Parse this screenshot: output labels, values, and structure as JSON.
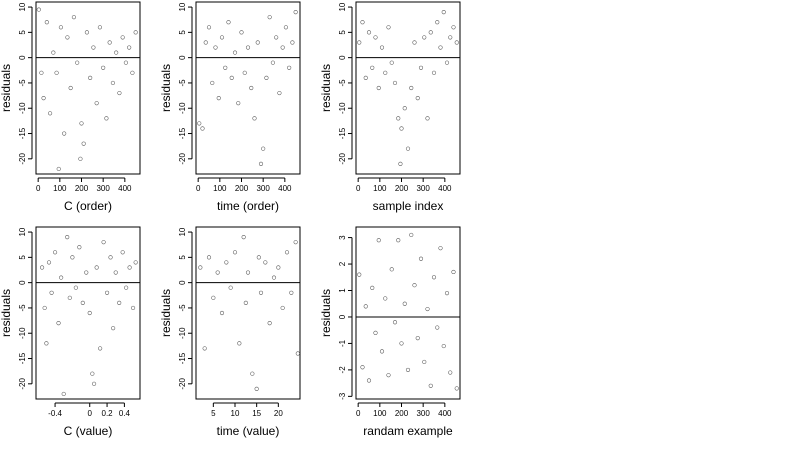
{
  "colors": {
    "point": "#555555",
    "line": "#000000",
    "background": "#ffffff"
  },
  "chart_data": [
    {
      "type": "scatter",
      "title": "",
      "xlabel": "C (order)",
      "ylabel": "residuals",
      "xlim": [
        -10,
        470
      ],
      "ylim": [
        -23,
        11
      ],
      "xticks": [
        0,
        100,
        200,
        300,
        400
      ],
      "yticks": [
        -20,
        -15,
        -10,
        -5,
        0,
        5,
        10
      ],
      "zero_line": 0,
      "grid": false,
      "legend": "none",
      "points": [
        [
          3,
          9.5
        ],
        [
          15,
          -3
        ],
        [
          25,
          -8
        ],
        [
          40,
          7
        ],
        [
          55,
          -11
        ],
        [
          70,
          1
        ],
        [
          85,
          -3
        ],
        [
          95,
          -22
        ],
        [
          105,
          6
        ],
        [
          120,
          -15
        ],
        [
          135,
          4
        ],
        [
          150,
          -6
        ],
        [
          165,
          8
        ],
        [
          180,
          -1
        ],
        [
          195,
          -20
        ],
        [
          200,
          -13
        ],
        [
          210,
          -17
        ],
        [
          225,
          5
        ],
        [
          240,
          -4
        ],
        [
          255,
          2
        ],
        [
          270,
          -9
        ],
        [
          285,
          6
        ],
        [
          300,
          -2
        ],
        [
          315,
          -12
        ],
        [
          330,
          3
        ],
        [
          345,
          -5
        ],
        [
          360,
          1
        ],
        [
          375,
          -7
        ],
        [
          390,
          4
        ],
        [
          405,
          -1
        ],
        [
          420,
          2
        ],
        [
          435,
          -3
        ],
        [
          450,
          5
        ]
      ]
    },
    {
      "type": "scatter",
      "title": "",
      "xlabel": "time (order)",
      "ylabel": "residuals",
      "xlim": [
        -10,
        470
      ],
      "ylim": [
        -23,
        11
      ],
      "xticks": [
        0,
        100,
        200,
        300,
        400
      ],
      "yticks": [
        -20,
        -15,
        -10,
        -5,
        0,
        5,
        10
      ],
      "zero_line": 0,
      "grid": false,
      "legend": "none",
      "points": [
        [
          5,
          -13
        ],
        [
          20,
          -14
        ],
        [
          35,
          3
        ],
        [
          50,
          6
        ],
        [
          65,
          -5
        ],
        [
          80,
          2
        ],
        [
          95,
          -8
        ],
        [
          110,
          4
        ],
        [
          125,
          -2
        ],
        [
          140,
          7
        ],
        [
          155,
          -4
        ],
        [
          170,
          1
        ],
        [
          185,
          -9
        ],
        [
          200,
          5
        ],
        [
          215,
          -3
        ],
        [
          230,
          2
        ],
        [
          245,
          -6
        ],
        [
          260,
          -12
        ],
        [
          275,
          3
        ],
        [
          290,
          -21
        ],
        [
          300,
          -18
        ],
        [
          315,
          -4
        ],
        [
          330,
          8
        ],
        [
          345,
          -1
        ],
        [
          360,
          4
        ],
        [
          375,
          -7
        ],
        [
          390,
          2
        ],
        [
          405,
          6
        ],
        [
          420,
          -2
        ],
        [
          435,
          3
        ],
        [
          450,
          9
        ]
      ]
    },
    {
      "type": "scatter",
      "title": "",
      "xlabel": "sample index",
      "ylabel": "residuals",
      "xlim": [
        -10,
        470
      ],
      "ylim": [
        -23,
        11
      ],
      "xticks": [
        0,
        100,
        200,
        300,
        400
      ],
      "yticks": [
        -20,
        -15,
        -10,
        -5,
        0,
        5,
        10
      ],
      "zero_line": 0,
      "grid": false,
      "legend": "none",
      "points": [
        [
          5,
          3
        ],
        [
          20,
          7
        ],
        [
          35,
          -4
        ],
        [
          50,
          5
        ],
        [
          65,
          -2
        ],
        [
          80,
          4
        ],
        [
          95,
          -6
        ],
        [
          110,
          2
        ],
        [
          125,
          -3
        ],
        [
          140,
          6
        ],
        [
          155,
          -1
        ],
        [
          170,
          -5
        ],
        [
          185,
          -12
        ],
        [
          195,
          -21
        ],
        [
          200,
          -14
        ],
        [
          215,
          -10
        ],
        [
          230,
          -18
        ],
        [
          245,
          -6
        ],
        [
          260,
          3
        ],
        [
          275,
          -8
        ],
        [
          290,
          -2
        ],
        [
          305,
          4
        ],
        [
          320,
          -12
        ],
        [
          335,
          5
        ],
        [
          350,
          -3
        ],
        [
          365,
          7
        ],
        [
          380,
          2
        ],
        [
          395,
          9
        ],
        [
          410,
          -1
        ],
        [
          425,
          4
        ],
        [
          440,
          6
        ],
        [
          455,
          3
        ]
      ]
    },
    {
      "type": "scatter",
      "title": "",
      "xlabel": "C (value)",
      "ylabel": "residuals",
      "xlim": [
        -0.62,
        0.58
      ],
      "ylim": [
        -23,
        11
      ],
      "xticks": [
        -0.4,
        0.0,
        0.2,
        0.4
      ],
      "yticks": [
        -20,
        -15,
        -10,
        -5,
        0,
        5,
        10
      ],
      "zero_line": 0,
      "grid": false,
      "legend": "none",
      "points": [
        [
          -0.55,
          3
        ],
        [
          -0.52,
          -5
        ],
        [
          -0.5,
          -12
        ],
        [
          -0.47,
          4
        ],
        [
          -0.44,
          -2
        ],
        [
          -0.4,
          6
        ],
        [
          -0.36,
          -8
        ],
        [
          -0.33,
          1
        ],
        [
          -0.3,
          -22
        ],
        [
          -0.26,
          9
        ],
        [
          -0.23,
          -3
        ],
        [
          -0.2,
          5
        ],
        [
          -0.16,
          -1
        ],
        [
          -0.12,
          7
        ],
        [
          -0.08,
          -4
        ],
        [
          -0.04,
          2
        ],
        [
          0.0,
          -6
        ],
        [
          0.03,
          -18
        ],
        [
          0.05,
          -20
        ],
        [
          0.08,
          3
        ],
        [
          0.12,
          -13
        ],
        [
          0.16,
          8
        ],
        [
          0.2,
          -2
        ],
        [
          0.24,
          5
        ],
        [
          0.27,
          -9
        ],
        [
          0.3,
          2
        ],
        [
          0.34,
          -4
        ],
        [
          0.38,
          6
        ],
        [
          0.42,
          -1
        ],
        [
          0.46,
          3
        ],
        [
          0.5,
          -5
        ],
        [
          0.53,
          4
        ]
      ]
    },
    {
      "type": "scatter",
      "title": "",
      "xlabel": "time (value)",
      "ylabel": "residuals",
      "xlim": [
        1,
        25
      ],
      "ylim": [
        -23,
        11
      ],
      "xticks": [
        5,
        10,
        15,
        20
      ],
      "yticks": [
        -20,
        -15,
        -10,
        -5,
        0,
        5,
        10
      ],
      "zero_line": 0,
      "grid": false,
      "legend": "none",
      "points": [
        [
          2,
          3
        ],
        [
          3,
          -13
        ],
        [
          4,
          5
        ],
        [
          5,
          -3
        ],
        [
          6,
          2
        ],
        [
          7,
          -6
        ],
        [
          8,
          4
        ],
        [
          9,
          -1
        ],
        [
          10,
          6
        ],
        [
          11,
          -12
        ],
        [
          12,
          9
        ],
        [
          12.5,
          -4
        ],
        [
          13,
          2
        ],
        [
          14,
          -18
        ],
        [
          15,
          -21
        ],
        [
          15.5,
          5
        ],
        [
          16,
          -2
        ],
        [
          17,
          4
        ],
        [
          18,
          -8
        ],
        [
          19,
          1
        ],
        [
          20,
          3
        ],
        [
          21,
          -5
        ],
        [
          22,
          6
        ],
        [
          23,
          -2
        ],
        [
          24,
          8
        ],
        [
          24.5,
          -14
        ]
      ]
    },
    {
      "type": "scatter",
      "title": "",
      "xlabel": "randam example",
      "ylabel": "residuals",
      "xlim": [
        -10,
        470
      ],
      "ylim": [
        -3.1,
        3.4
      ],
      "xticks": [
        0,
        100,
        200,
        300,
        400
      ],
      "yticks": [
        -3,
        -2,
        -1,
        0,
        1,
        2,
        3
      ],
      "zero_line": 0,
      "grid": false,
      "legend": "none",
      "points": [
        [
          5,
          1.6
        ],
        [
          20,
          -1.9
        ],
        [
          35,
          0.4
        ],
        [
          50,
          -2.4
        ],
        [
          65,
          1.1
        ],
        [
          80,
          -0.6
        ],
        [
          95,
          2.9
        ],
        [
          110,
          -1.3
        ],
        [
          125,
          0.7
        ],
        [
          140,
          -2.2
        ],
        [
          155,
          1.8
        ],
        [
          170,
          -0.2
        ],
        [
          185,
          2.9
        ],
        [
          200,
          -1.0
        ],
        [
          215,
          0.5
        ],
        [
          230,
          -2.0
        ],
        [
          245,
          3.1
        ],
        [
          260,
          1.2
        ],
        [
          275,
          -0.8
        ],
        [
          290,
          2.2
        ],
        [
          305,
          -1.7
        ],
        [
          320,
          0.3
        ],
        [
          335,
          -2.6
        ],
        [
          350,
          1.5
        ],
        [
          365,
          -0.4
        ],
        [
          380,
          2.6
        ],
        [
          395,
          -1.1
        ],
        [
          410,
          0.9
        ],
        [
          425,
          -2.1
        ],
        [
          440,
          1.7
        ],
        [
          455,
          -2.7
        ]
      ]
    }
  ]
}
